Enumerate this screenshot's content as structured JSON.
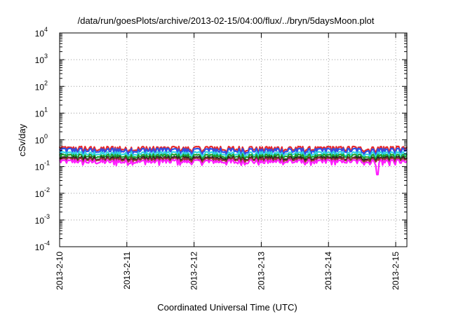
{
  "chart_data": {
    "type": "line",
    "title": "/data/run/goesPlots/archive/2013-02-15/04:00/flux/../bryn/5daysMoon.plot",
    "xlabel": "Coordinated Universal Time (UTC)",
    "ylabel": "cSv/day",
    "y_scale": "log",
    "ylim": [
      0.0001,
      10000
    ],
    "y_ticks": [
      {
        "base": "10",
        "exp": "-4"
      },
      {
        "base": "10",
        "exp": "-3"
      },
      {
        "base": "10",
        "exp": "-2"
      },
      {
        "base": "10",
        "exp": "-1"
      },
      {
        "base": "10",
        "exp": "0"
      },
      {
        "base": "10",
        "exp": "1"
      },
      {
        "base": "10",
        "exp": "2"
      },
      {
        "base": "10",
        "exp": "3"
      },
      {
        "base": "10",
        "exp": "4"
      }
    ],
    "xlim": [
      "2013-02-10T00:00",
      "2013-02-15T04:00"
    ],
    "x_ticks": [
      "2013-2-10",
      "2013-2-11",
      "2013-2-12",
      "2013-2-13",
      "2013-2-14",
      "2013-2-15"
    ],
    "grid": true,
    "series": [
      {
        "color": "#e8282a",
        "approx_level": 0.42,
        "spread": 0.22
      },
      {
        "color": "#2f52e6",
        "approx_level": 0.36,
        "spread": 0.22
      },
      {
        "color": "#2fd5e1",
        "approx_level": 0.28,
        "spread": 0.18
      },
      {
        "color": "#1e9e2d",
        "approx_level": 0.23,
        "spread": 0.16
      },
      {
        "color": "#222222",
        "approx_level": 0.19,
        "spread": 0.15
      },
      {
        "color": "#9a3a3a",
        "approx_level": 0.17,
        "spread": 0.15
      },
      {
        "color": "#ff1fff",
        "approx_level": 0.14,
        "spread": 0.18,
        "dip": {
          "x": "2013-02-14T17:30",
          "y": 0.05
        }
      }
    ]
  }
}
